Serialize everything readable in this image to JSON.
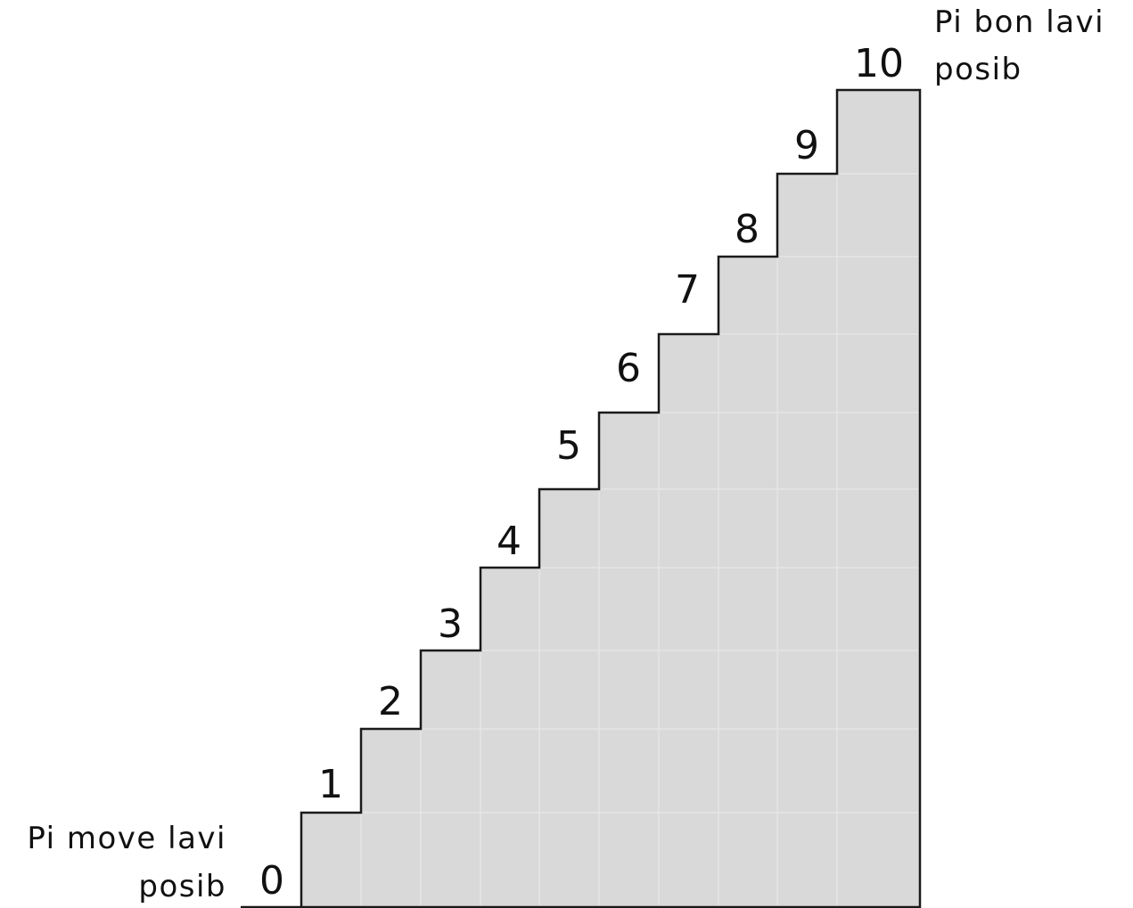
{
  "ladder": {
    "steps": [
      "0",
      "1",
      "2",
      "3",
      "4",
      "5",
      "6",
      "7",
      "8",
      "9",
      "10"
    ],
    "top_label": {
      "line1": "Pi bon lavi",
      "line2": "posib"
    },
    "bottom_label": {
      "line1": "Pi move lavi",
      "line2": "posib"
    },
    "colors": {
      "fill": "#d9d9d9",
      "outline": "#1a1a1a",
      "grid": "#e6e6e6"
    }
  }
}
